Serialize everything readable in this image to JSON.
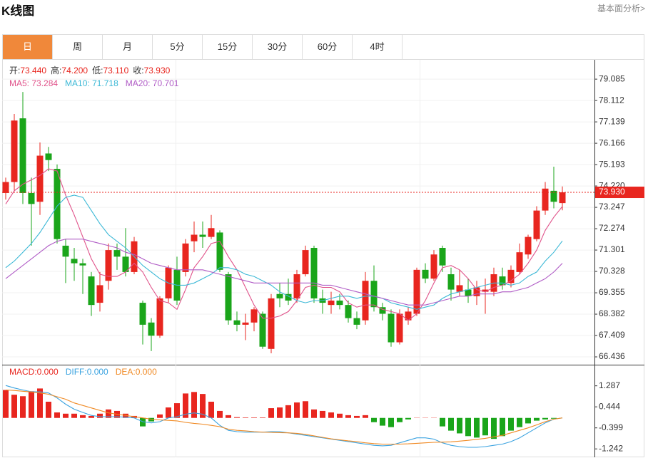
{
  "header": {
    "title": "K线图",
    "link": "基本面分析>"
  },
  "tabs": [
    "日",
    "周",
    "月",
    "5分",
    "15分",
    "30分",
    "60分",
    "4时"
  ],
  "active_tab": 0,
  "quote": [
    {
      "label": "开:",
      "value": "73.440"
    },
    {
      "label": "高:",
      "value": "74.200"
    },
    {
      "label": "低:",
      "value": "73.110"
    },
    {
      "label": "收:",
      "value": "73.930"
    }
  ],
  "chart_data": [
    {
      "type": "candlestick",
      "up_color": "#e8261f",
      "down_color": "#1aa51a",
      "open": [
        73.9,
        74.4,
        77.3,
        73.9,
        73.5,
        75.7,
        75.0,
        71.5,
        70.9,
        70.7,
        70.1,
        68.9,
        69.9,
        71.3,
        71.0,
        70.3,
        68.9,
        68.0,
        67.4,
        69.1,
        70.4,
        70.3,
        71.7,
        72.0,
        71.9,
        72.1,
        70.2,
        68.1,
        67.9,
        68.0,
        68.4,
        66.8,
        69.3,
        69.3,
        69.1,
        70.2,
        71.4,
        69.1,
        68.8,
        69.0,
        68.8,
        68.2,
        68.1,
        69.9,
        68.7,
        68.4,
        67.1,
        68.1,
        68.4,
        70.4,
        70.0,
        71.4,
        70.2,
        69.4,
        69.5,
        69.2,
        69.4,
        69.4,
        70.1,
        69.8,
        70.3,
        71.1,
        71.8,
        73.1,
        74.0,
        73.44
      ],
      "high": [
        74.6,
        77.5,
        78.5,
        74.6,
        76.2,
        76.0,
        75.2,
        71.8,
        71.4,
        70.9,
        70.3,
        70.3,
        71.6,
        71.6,
        72.3,
        71.9,
        69.0,
        68.2,
        69.2,
        70.6,
        71.0,
        71.8,
        72.6,
        72.6,
        72.9,
        72.2,
        70.3,
        68.5,
        68.4,
        68.7,
        68.5,
        69.3,
        69.8,
        70.0,
        70.4,
        71.5,
        71.5,
        69.5,
        69.4,
        69.3,
        69.0,
        68.5,
        70.3,
        70.6,
        68.9,
        68.6,
        68.6,
        68.7,
        70.5,
        70.7,
        71.3,
        71.5,
        70.5,
        70.4,
        70.0,
        69.9,
        70.0,
        70.5,
        70.5,
        70.6,
        71.6,
        72.0,
        73.3,
        74.4,
        75.1,
        74.2
      ],
      "low": [
        73.6,
        74.0,
        73.4,
        71.5,
        72.9,
        74.9,
        71.6,
        69.8,
        69.9,
        69.3,
        68.3,
        68.5,
        69.5,
        70.4,
        70.1,
        70.2,
        67.0,
        66.7,
        67.3,
        68.9,
        68.8,
        70.1,
        71.2,
        71.4,
        71.8,
        70.3,
        67.9,
        67.6,
        67.2,
        67.6,
        66.8,
        66.6,
        68.7,
        68.8,
        68.9,
        70.1,
        68.9,
        68.4,
        68.4,
        68.6,
        68.0,
        67.7,
        67.9,
        68.5,
        68.1,
        66.9,
        67.0,
        67.9,
        68.3,
        69.8,
        69.9,
        70.3,
        69.0,
        69.2,
        68.9,
        68.8,
        68.4,
        69.2,
        69.5,
        69.6,
        70.2,
        70.9,
        71.7,
        72.9,
        73.2,
        73.11
      ],
      "close": [
        74.4,
        77.2,
        73.9,
        73.4,
        75.6,
        75.4,
        71.8,
        71.0,
        70.7,
        70.6,
        68.8,
        69.7,
        71.3,
        71.0,
        70.3,
        71.7,
        67.9,
        67.4,
        69.1,
        70.5,
        69.0,
        71.6,
        72.0,
        71.9,
        72.3,
        70.4,
        68.1,
        67.9,
        68.0,
        68.6,
        66.9,
        69.1,
        69.1,
        69.0,
        70.2,
        71.3,
        69.1,
        68.9,
        69.0,
        68.8,
        68.2,
        67.9,
        69.9,
        68.7,
        68.4,
        67.1,
        68.4,
        68.5,
        70.4,
        70.0,
        71.1,
        70.6,
        69.5,
        69.7,
        69.2,
        69.6,
        69.5,
        70.2,
        69.7,
        70.4,
        71.2,
        71.9,
        73.1,
        74.1,
        73.5,
        73.93
      ],
      "series": [
        {
          "name": "MA5: 73.284",
          "color": "#e0528a",
          "values": [
            73.4,
            74.0,
            74.3,
            74.5,
            74.7,
            75.0,
            74.9,
            73.8,
            72.9,
            71.9,
            70.9,
            70.2,
            70.1,
            70.1,
            70.3,
            70.7,
            70.3,
            69.6,
            69.0,
            68.9,
            68.6,
            69.5,
            70.5,
            71.0,
            71.6,
            71.7,
            71.0,
            70.4,
            69.6,
            68.8,
            68.2,
            68.2,
            68.3,
            68.5,
            69.0,
            69.6,
            69.7,
            69.6,
            69.6,
            69.4,
            68.9,
            68.7,
            68.8,
            68.8,
            68.6,
            68.5,
            68.4,
            68.1,
            68.4,
            69.0,
            69.8,
            70.5,
            70.6,
            70.4,
            70.0,
            69.5,
            69.4,
            69.6,
            69.7,
            69.9,
            70.2,
            70.7,
            71.3,
            72.2,
            72.8,
            73.284
          ]
        },
        {
          "name": "MA10: 71.718",
          "color": "#3bb8d6",
          "values": [
            70.5,
            70.8,
            71.2,
            71.6,
            72.1,
            72.7,
            73.3,
            73.7,
            73.8,
            73.7,
            73.1,
            72.5,
            72.0,
            71.7,
            71.4,
            71.0,
            70.6,
            70.3,
            70.0,
            69.8,
            69.7,
            69.7,
            69.8,
            70.0,
            70.2,
            70.5,
            70.5,
            70.4,
            70.2,
            70.1,
            69.9,
            69.7,
            69.4,
            69.2,
            69.0,
            68.9,
            69.0,
            69.0,
            69.1,
            69.2,
            69.2,
            69.1,
            69.2,
            69.2,
            69.1,
            68.9,
            68.8,
            68.7,
            68.6,
            68.7,
            68.8,
            69.1,
            69.3,
            69.4,
            69.5,
            69.6,
            69.7,
            69.8,
            69.8,
            69.7,
            69.8,
            70.1,
            70.3,
            70.8,
            71.2,
            71.718
          ]
        },
        {
          "name": "MA20: 70.701",
          "color": "#b05cc6",
          "values": [
            70.0,
            70.3,
            70.6,
            70.9,
            71.2,
            71.5,
            71.7,
            71.8,
            71.8,
            71.8,
            71.7,
            71.6,
            71.5,
            71.4,
            71.2,
            71.1,
            70.9,
            70.7,
            70.6,
            70.5,
            70.4,
            70.4,
            70.4,
            70.4,
            70.3,
            70.2,
            70.1,
            70.0,
            69.9,
            69.8,
            69.8,
            69.8,
            69.8,
            69.8,
            69.8,
            69.8,
            69.8,
            69.7,
            69.7,
            69.6,
            69.5,
            69.4,
            69.3,
            69.2,
            69.1,
            69.0,
            68.9,
            68.8,
            68.8,
            68.8,
            68.9,
            69.0,
            69.1,
            69.2,
            69.2,
            69.3,
            69.3,
            69.3,
            69.4,
            69.4,
            69.5,
            69.6,
            69.8,
            70.0,
            70.3,
            70.701
          ]
        }
      ],
      "last_price": {
        "value": 73.93,
        "label": "73.930"
      },
      "ylim": [
        66.08,
        79.9
      ],
      "yticks": [
        79.085,
        78.112,
        77.139,
        76.166,
        75.193,
        {
          "value": 74.22,
          "label": "74.220"
        },
        73.247,
        72.274,
        71.301,
        70.328,
        69.355,
        68.382,
        67.409,
        66.436
      ],
      "grid": true
    },
    {
      "type": "macd",
      "up_color": "#e8261f",
      "down_color": "#1aa51a",
      "histogram": {
        "name": "MACD:0.000",
        "values": [
          1.12,
          0.93,
          0.87,
          1.07,
          1.18,
          0.65,
          0.22,
          0.17,
          0.17,
          0.11,
          0.08,
          0.17,
          0.34,
          0.28,
          0.17,
          0.08,
          -0.34,
          -0.14,
          0.14,
          0.42,
          0.59,
          0.98,
          1.04,
          0.96,
          0.65,
          0.28,
          0.11,
          0.03,
          0.02,
          0.02,
          0.02,
          0.39,
          0.42,
          0.51,
          0.62,
          0.67,
          0.34,
          0.28,
          0.22,
          0.17,
          0.11,
          0.08,
          0.11,
          -0.17,
          -0.31,
          -0.37,
          -0.17,
          -0.06,
          0.01,
          0.01,
          0.01,
          -0.34,
          -0.51,
          -0.62,
          -0.73,
          -0.79,
          -0.7,
          -0.84,
          -0.73,
          -0.51,
          -0.37,
          -0.22,
          -0.11,
          -0.06,
          -0.03,
          0.0
        ]
      },
      "series": [
        {
          "name": "DIFF:0.000",
          "color": "#3ba3e0",
          "values": [
            1.3,
            1.2,
            1.12,
            1.05,
            1.05,
            1.0,
            0.8,
            0.55,
            0.35,
            0.22,
            0.1,
            0.05,
            0.05,
            0.05,
            0.03,
            0.0,
            -0.15,
            -0.2,
            -0.15,
            0.0,
            0.05,
            0.15,
            0.2,
            0.15,
            0.0,
            -0.3,
            -0.5,
            -0.55,
            -0.57,
            -0.57,
            -0.57,
            -0.55,
            -0.55,
            -0.6,
            -0.65,
            -0.7,
            -0.75,
            -0.8,
            -0.85,
            -0.9,
            -0.95,
            -1.0,
            -1.05,
            -1.1,
            -1.12,
            -1.1,
            -1.0,
            -0.9,
            -0.8,
            -0.8,
            -0.85,
            -1.0,
            -1.1,
            -1.15,
            -1.18,
            -1.18,
            -1.15,
            -1.1,
            -1.05,
            -0.95,
            -0.8,
            -0.6,
            -0.4,
            -0.2,
            -0.05,
            0.0
          ]
        },
        {
          "name": "DEA:0.000",
          "color": "#f08a24",
          "values": [
            1.12,
            1.1,
            1.07,
            1.04,
            1.0,
            0.95,
            0.85,
            0.75,
            0.6,
            0.5,
            0.4,
            0.3,
            0.2,
            0.15,
            0.1,
            0.05,
            0.0,
            -0.05,
            -0.08,
            -0.1,
            -0.12,
            -0.18,
            -0.22,
            -0.25,
            -0.3,
            -0.35,
            -0.45,
            -0.5,
            -0.52,
            -0.55,
            -0.57,
            -0.58,
            -0.59,
            -0.6,
            -0.62,
            -0.66,
            -0.72,
            -0.78,
            -0.84,
            -0.88,
            -0.92,
            -0.95,
            -1.0,
            -1.03,
            -1.05,
            -1.05,
            -1.05,
            -1.04,
            -1.02,
            -1.0,
            -0.98,
            -0.97,
            -0.96,
            -0.93,
            -0.9,
            -0.86,
            -0.82,
            -0.76,
            -0.7,
            -0.6,
            -0.5,
            -0.4,
            -0.28,
            -0.15,
            -0.05,
            0.0
          ]
        }
      ],
      "ylim": [
        -1.55,
        2.02
      ],
      "yticks": [
        1.287,
        0.444,
        -0.399,
        -1.242
      ],
      "grid": false
    }
  ]
}
